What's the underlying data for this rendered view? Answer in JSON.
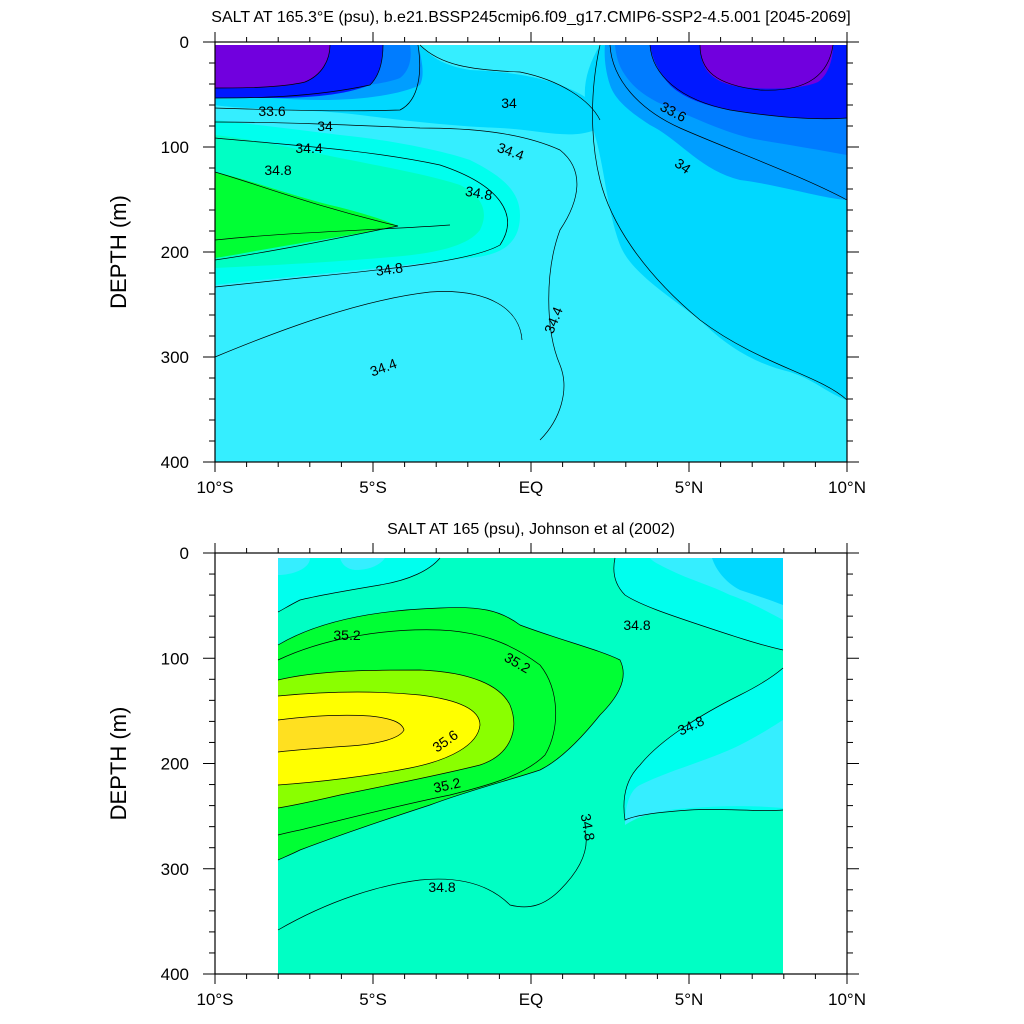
{
  "chart_data": [
    {
      "type": "contour",
      "title": "SALT AT 165.3°E (psu), b.e21.BSSP245cmip6.f09_g17.CMIP6-SSP2-4.5.001 [2045-2069]",
      "xlabel": "",
      "ylabel": "DEPTH (m)",
      "xlim": [
        -10,
        10
      ],
      "ylim": [
        0,
        400
      ],
      "y_reversed": true,
      "x_ticks": [
        -10,
        -5,
        0,
        5,
        10
      ],
      "x_tick_labels": [
        "10°S",
        "5°S",
        "EQ",
        "5°N",
        "10°N"
      ],
      "y_ticks": [
        0,
        100,
        200,
        300,
        400
      ],
      "y_tick_labels": [
        "0",
        "100",
        "200",
        "300",
        "400"
      ],
      "contour_interval": 0.2,
      "contour_labels": [
        {
          "text": "33.6",
          "x": -8.2,
          "y": 62
        },
        {
          "text": "34",
          "x": -6.6,
          "y": 80
        },
        {
          "text": "34.4",
          "x": -7.0,
          "y": 101
        },
        {
          "text": "34.8",
          "x": -8.3,
          "y": 121
        },
        {
          "text": "34",
          "x": -0.7,
          "y": 58
        },
        {
          "text": "34.4",
          "x": -0.7,
          "y": 104
        },
        {
          "text": "34.8",
          "x": -1.7,
          "y": 143
        },
        {
          "text": "34.8",
          "x": -4.6,
          "y": 218
        },
        {
          "text": "34.4",
          "x": 0.8,
          "y": 265
        },
        {
          "text": "34.4",
          "x": -5.4,
          "y": 310
        },
        {
          "text": "33.6",
          "x": 4.4,
          "y": 64
        },
        {
          "text": "34",
          "x": 4.6,
          "y": 114
        }
      ]
    },
    {
      "type": "contour",
      "title": "SALT AT 165 (psu), Johnson et al (2002)",
      "xlabel": "",
      "ylabel": "DEPTH (m)",
      "xlim": [
        -10,
        10
      ],
      "ylim": [
        0,
        400
      ],
      "y_reversed": true,
      "data_extent_x": [
        -8,
        8
      ],
      "x_ticks": [
        -10,
        -5,
        0,
        5,
        10
      ],
      "x_tick_labels": [
        "10°S",
        "5°S",
        "EQ",
        "5°N",
        "10°N"
      ],
      "y_ticks": [
        0,
        100,
        200,
        300,
        400
      ],
      "y_tick_labels": [
        "0",
        "100",
        "200",
        "300",
        "400"
      ],
      "contour_interval": 0.2,
      "contour_labels": [
        {
          "text": "35.2",
          "x": -6.0,
          "y": 80
        },
        {
          "text": "35.2",
          "x": -0.5,
          "y": 108
        },
        {
          "text": "35.6",
          "x": -2.7,
          "y": 182
        },
        {
          "text": "35.2",
          "x": -2.7,
          "y": 228
        },
        {
          "text": "34.8",
          "x": 3.4,
          "y": 70
        },
        {
          "text": "34.8",
          "x": 5.2,
          "y": 167
        },
        {
          "text": "34.8",
          "x": 1.6,
          "y": 262
        },
        {
          "text": "34.8",
          "x": -2.8,
          "y": 315
        }
      ]
    }
  ],
  "colors": {
    "background": "#ffffff",
    "c_33_4": "#7100de",
    "c_33_6": "#0018ff",
    "c_33_8": "#007cff",
    "c_34_0": "#009eff",
    "c_34_2": "#00d8ff",
    "c_34_4": "#35eeff",
    "c_34_6": "#00ffee",
    "c_34_8": "#00ffc4",
    "c_35_0": "#00ff34",
    "c_35_2": "#00ff34",
    "c_35_4": "#8aff00",
    "c_35_6": "#ffff00",
    "c_35_8": "#ffe020",
    "line": "#000000"
  }
}
